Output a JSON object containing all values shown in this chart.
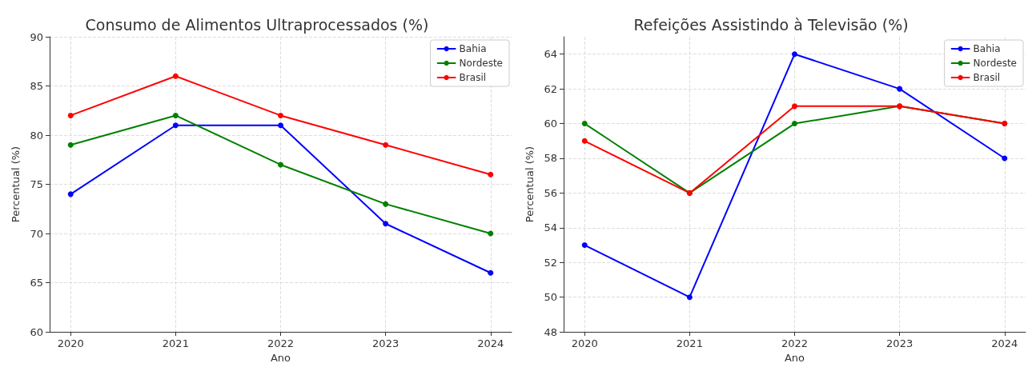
{
  "chart_data": [
    {
      "type": "line",
      "title": "Consumo de Alimentos Ultraprocessados (%)",
      "xlabel": "Ano",
      "ylabel": "Percentual (%)",
      "x": [
        2020,
        2021,
        2022,
        2023,
        2024
      ],
      "xlim": [
        2019.8,
        2024.2
      ],
      "xticks": [
        2020,
        2021,
        2022,
        2023,
        2024
      ],
      "ylim": [
        60,
        90
      ],
      "yticks": [
        60,
        65,
        70,
        75,
        80,
        85,
        90
      ],
      "grid": true,
      "legend": "top right",
      "marker": "circle",
      "line_style": "solid",
      "series": [
        {
          "name": "Bahia",
          "color": "#0000ff",
          "values": [
            74,
            81,
            81,
            71,
            66
          ]
        },
        {
          "name": "Nordeste",
          "color": "#008000",
          "values": [
            79,
            82,
            77,
            73,
            70
          ]
        },
        {
          "name": "Brasil",
          "color": "#ff0000",
          "values": [
            82,
            86,
            82,
            79,
            76
          ]
        }
      ]
    },
    {
      "type": "line",
      "title": "Refeições Assistindo à Televisão (%)",
      "xlabel": "Ano",
      "ylabel": "Percentual (%)",
      "x": [
        2020,
        2021,
        2022,
        2023,
        2024
      ],
      "xlim": [
        2019.8,
        2024.2
      ],
      "xticks": [
        2020,
        2021,
        2022,
        2023,
        2024
      ],
      "ylim": [
        48,
        65
      ],
      "yticks": [
        48,
        50,
        52,
        54,
        56,
        58,
        60,
        62,
        64
      ],
      "grid": true,
      "legend": "top right",
      "marker": "circle",
      "line_style": "solid",
      "series": [
        {
          "name": "Bahia",
          "color": "#0000ff",
          "values": [
            53,
            50,
            64,
            62,
            58
          ]
        },
        {
          "name": "Nordeste",
          "color": "#008000",
          "values": [
            60,
            56,
            60,
            61,
            60
          ]
        },
        {
          "name": "Brasil",
          "color": "#ff0000",
          "values": [
            59,
            56,
            61,
            61,
            60
          ]
        }
      ]
    }
  ]
}
